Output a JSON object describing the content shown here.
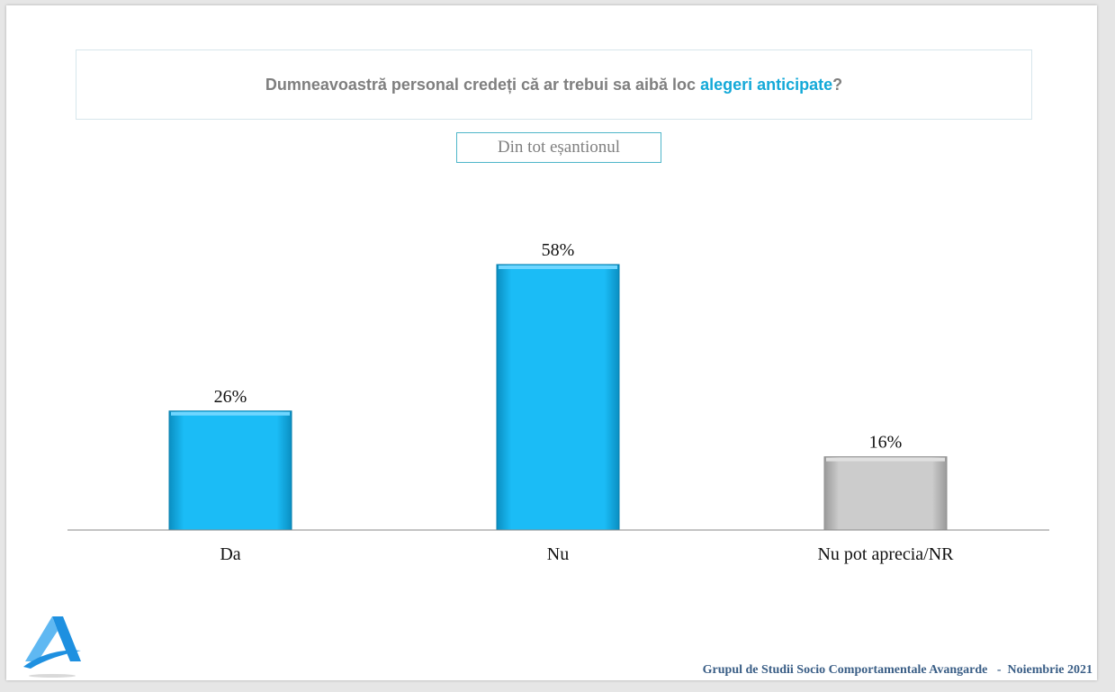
{
  "question": {
    "text_before": "Dumneavoastră personal credeți că ar trebui sa aibă loc ",
    "highlight": "alegeri anticipate",
    "text_after": "?"
  },
  "subset_label": "Din tot eșantionul",
  "footer": {
    "organization": "Grupul de Studii Socio Comportamentale Avangarde",
    "separator": "   -  ",
    "date": "Noiembrie 2021"
  },
  "colors": {
    "highlight": "#14a9d8",
    "bar_blue": "#0bb8f5",
    "bar_gray": "#c8c8c8",
    "logo_blue": "#1e90e0"
  },
  "logo": {
    "icon": "avangarde-logo-icon"
  },
  "chart_data": {
    "type": "bar",
    "categories": [
      "Da",
      "Nu",
      "Nu pot aprecia/NR"
    ],
    "values": [
      26,
      58,
      16
    ],
    "value_labels": [
      "26%",
      "58%",
      "16%"
    ],
    "bar_colors": [
      "#0bb8f5",
      "#0bb8f5",
      "#c8c8c8"
    ],
    "title": "",
    "xlabel": "",
    "ylabel": "",
    "ylim": [
      0,
      65
    ],
    "grid": false,
    "legend": "none"
  }
}
